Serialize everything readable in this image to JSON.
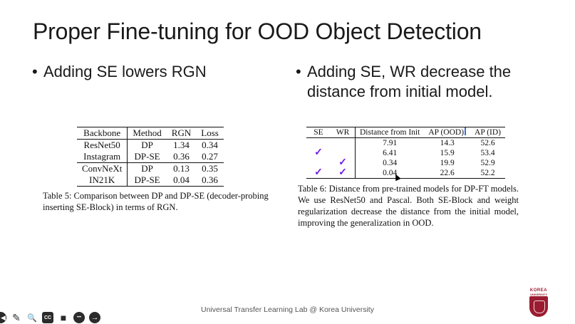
{
  "slide": {
    "title": "Proper Fine-tuning for OOD Object Detection",
    "bullet_left": "Adding SE lowers RGN",
    "bullet_right": "Adding SE, WR decrease the distance from initial model.",
    "bullet_symbol": "•"
  },
  "table5": {
    "headers": [
      "Backbone",
      "Method",
      "RGN",
      "Loss"
    ],
    "rows": [
      [
        "ResNet50",
        "DP",
        "1.34",
        "0.34"
      ],
      [
        "Instagram",
        "DP-SE",
        "0.36",
        "0.27"
      ],
      [
        "ConvNeXt",
        "DP",
        "0.13",
        "0.35"
      ],
      [
        "IN21K",
        "DP-SE",
        "0.04",
        "0.36"
      ]
    ],
    "caption": "Table 5: Comparison between DP and DP-SE (decoder-probing inserting SE-Block) in terms of RGN."
  },
  "table6": {
    "headers": [
      "SE",
      "WR",
      "Distance from Init",
      "AP (OOD)",
      "AP (ID)"
    ],
    "check_symbol": "✓",
    "rows": [
      {
        "se": "",
        "wr": "",
        "dist": "7.91",
        "ood": "14.3",
        "id": "52.6"
      },
      {
        "se": "✓",
        "wr": "",
        "dist": "6.41",
        "ood": "15.9",
        "id": "53.4"
      },
      {
        "se": "",
        "wr": "✓",
        "dist": "0.34",
        "ood": "19.9",
        "id": "52.9"
      },
      {
        "se": "✓",
        "wr": "✓",
        "dist": "0.04",
        "ood": "22.6",
        "id": "52.2"
      }
    ],
    "caption": "Table 6: Distance from pre-trained models for DP-FT models. We use ResNet50 and Pascal. Both SE-Block and weight regularization decrease the distance from the initial model, improving the generalization in OOD."
  },
  "footer": "Universal Transfer Learning Lab @ Korea University",
  "logo": {
    "line1": "KOREA",
    "line2": "UNIVERSITY"
  },
  "toolbar": [
    {
      "name": "previous-icon",
      "glyph": "◀"
    },
    {
      "name": "pen-icon",
      "glyph": "✎"
    },
    {
      "name": "zoom-icon",
      "glyph": "🔍"
    },
    {
      "name": "captions-icon",
      "glyph": "CC"
    },
    {
      "name": "camera-icon",
      "glyph": "■"
    },
    {
      "name": "more-icon",
      "glyph": "•••"
    },
    {
      "name": "next-icon",
      "glyph": "→"
    }
  ],
  "colors": {
    "check": "#6a1de0",
    "logo": "#9b1b30",
    "footer_text": "#555555"
  }
}
